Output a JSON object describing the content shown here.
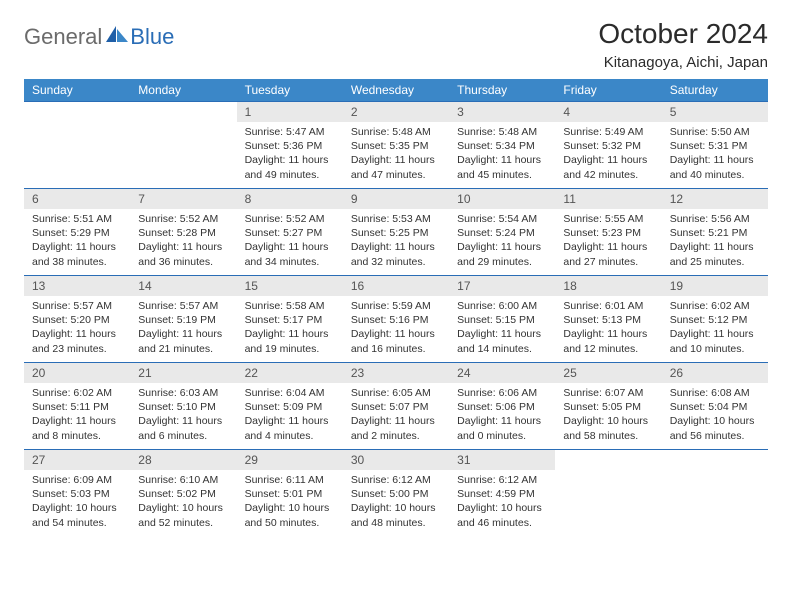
{
  "logo": {
    "text1": "General",
    "text2": "Blue"
  },
  "title": "October 2024",
  "location": "Kitanagoya, Aichi, Japan",
  "colors": {
    "header_bg": "#3b87c8",
    "header_text": "#ffffff",
    "daynum_bg": "#e9e9e9",
    "week_border": "#2a6db6",
    "logo_gray": "#6b6b6b",
    "logo_blue": "#2a6db6"
  },
  "day_names": [
    "Sunday",
    "Monday",
    "Tuesday",
    "Wednesday",
    "Thursday",
    "Friday",
    "Saturday"
  ],
  "weeks": [
    [
      {
        "empty": true
      },
      {
        "empty": true
      },
      {
        "num": "1",
        "sunrise": "Sunrise: 5:47 AM",
        "sunset": "Sunset: 5:36 PM",
        "daylight": "Daylight: 11 hours and 49 minutes."
      },
      {
        "num": "2",
        "sunrise": "Sunrise: 5:48 AM",
        "sunset": "Sunset: 5:35 PM",
        "daylight": "Daylight: 11 hours and 47 minutes."
      },
      {
        "num": "3",
        "sunrise": "Sunrise: 5:48 AM",
        "sunset": "Sunset: 5:34 PM",
        "daylight": "Daylight: 11 hours and 45 minutes."
      },
      {
        "num": "4",
        "sunrise": "Sunrise: 5:49 AM",
        "sunset": "Sunset: 5:32 PM",
        "daylight": "Daylight: 11 hours and 42 minutes."
      },
      {
        "num": "5",
        "sunrise": "Sunrise: 5:50 AM",
        "sunset": "Sunset: 5:31 PM",
        "daylight": "Daylight: 11 hours and 40 minutes."
      }
    ],
    [
      {
        "num": "6",
        "sunrise": "Sunrise: 5:51 AM",
        "sunset": "Sunset: 5:29 PM",
        "daylight": "Daylight: 11 hours and 38 minutes."
      },
      {
        "num": "7",
        "sunrise": "Sunrise: 5:52 AM",
        "sunset": "Sunset: 5:28 PM",
        "daylight": "Daylight: 11 hours and 36 minutes."
      },
      {
        "num": "8",
        "sunrise": "Sunrise: 5:52 AM",
        "sunset": "Sunset: 5:27 PM",
        "daylight": "Daylight: 11 hours and 34 minutes."
      },
      {
        "num": "9",
        "sunrise": "Sunrise: 5:53 AM",
        "sunset": "Sunset: 5:25 PM",
        "daylight": "Daylight: 11 hours and 32 minutes."
      },
      {
        "num": "10",
        "sunrise": "Sunrise: 5:54 AM",
        "sunset": "Sunset: 5:24 PM",
        "daylight": "Daylight: 11 hours and 29 minutes."
      },
      {
        "num": "11",
        "sunrise": "Sunrise: 5:55 AM",
        "sunset": "Sunset: 5:23 PM",
        "daylight": "Daylight: 11 hours and 27 minutes."
      },
      {
        "num": "12",
        "sunrise": "Sunrise: 5:56 AM",
        "sunset": "Sunset: 5:21 PM",
        "daylight": "Daylight: 11 hours and 25 minutes."
      }
    ],
    [
      {
        "num": "13",
        "sunrise": "Sunrise: 5:57 AM",
        "sunset": "Sunset: 5:20 PM",
        "daylight": "Daylight: 11 hours and 23 minutes."
      },
      {
        "num": "14",
        "sunrise": "Sunrise: 5:57 AM",
        "sunset": "Sunset: 5:19 PM",
        "daylight": "Daylight: 11 hours and 21 minutes."
      },
      {
        "num": "15",
        "sunrise": "Sunrise: 5:58 AM",
        "sunset": "Sunset: 5:17 PM",
        "daylight": "Daylight: 11 hours and 19 minutes."
      },
      {
        "num": "16",
        "sunrise": "Sunrise: 5:59 AM",
        "sunset": "Sunset: 5:16 PM",
        "daylight": "Daylight: 11 hours and 16 minutes."
      },
      {
        "num": "17",
        "sunrise": "Sunrise: 6:00 AM",
        "sunset": "Sunset: 5:15 PM",
        "daylight": "Daylight: 11 hours and 14 minutes."
      },
      {
        "num": "18",
        "sunrise": "Sunrise: 6:01 AM",
        "sunset": "Sunset: 5:13 PM",
        "daylight": "Daylight: 11 hours and 12 minutes."
      },
      {
        "num": "19",
        "sunrise": "Sunrise: 6:02 AM",
        "sunset": "Sunset: 5:12 PM",
        "daylight": "Daylight: 11 hours and 10 minutes."
      }
    ],
    [
      {
        "num": "20",
        "sunrise": "Sunrise: 6:02 AM",
        "sunset": "Sunset: 5:11 PM",
        "daylight": "Daylight: 11 hours and 8 minutes."
      },
      {
        "num": "21",
        "sunrise": "Sunrise: 6:03 AM",
        "sunset": "Sunset: 5:10 PM",
        "daylight": "Daylight: 11 hours and 6 minutes."
      },
      {
        "num": "22",
        "sunrise": "Sunrise: 6:04 AM",
        "sunset": "Sunset: 5:09 PM",
        "daylight": "Daylight: 11 hours and 4 minutes."
      },
      {
        "num": "23",
        "sunrise": "Sunrise: 6:05 AM",
        "sunset": "Sunset: 5:07 PM",
        "daylight": "Daylight: 11 hours and 2 minutes."
      },
      {
        "num": "24",
        "sunrise": "Sunrise: 6:06 AM",
        "sunset": "Sunset: 5:06 PM",
        "daylight": "Daylight: 11 hours and 0 minutes."
      },
      {
        "num": "25",
        "sunrise": "Sunrise: 6:07 AM",
        "sunset": "Sunset: 5:05 PM",
        "daylight": "Daylight: 10 hours and 58 minutes."
      },
      {
        "num": "26",
        "sunrise": "Sunrise: 6:08 AM",
        "sunset": "Sunset: 5:04 PM",
        "daylight": "Daylight: 10 hours and 56 minutes."
      }
    ],
    [
      {
        "num": "27",
        "sunrise": "Sunrise: 6:09 AM",
        "sunset": "Sunset: 5:03 PM",
        "daylight": "Daylight: 10 hours and 54 minutes."
      },
      {
        "num": "28",
        "sunrise": "Sunrise: 6:10 AM",
        "sunset": "Sunset: 5:02 PM",
        "daylight": "Daylight: 10 hours and 52 minutes."
      },
      {
        "num": "29",
        "sunrise": "Sunrise: 6:11 AM",
        "sunset": "Sunset: 5:01 PM",
        "daylight": "Daylight: 10 hours and 50 minutes."
      },
      {
        "num": "30",
        "sunrise": "Sunrise: 6:12 AM",
        "sunset": "Sunset: 5:00 PM",
        "daylight": "Daylight: 10 hours and 48 minutes."
      },
      {
        "num": "31",
        "sunrise": "Sunrise: 6:12 AM",
        "sunset": "Sunset: 4:59 PM",
        "daylight": "Daylight: 10 hours and 46 minutes."
      },
      {
        "empty": true
      },
      {
        "empty": true
      }
    ]
  ]
}
